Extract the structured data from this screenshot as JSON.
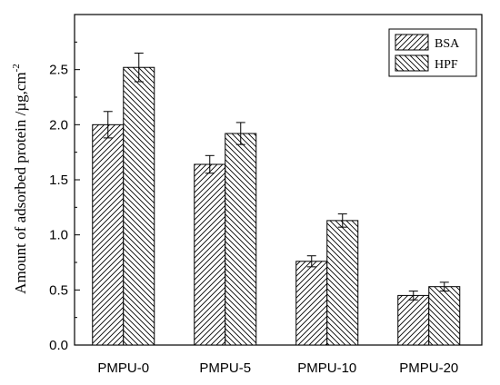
{
  "chart_data": {
    "type": "bar",
    "categories": [
      "PMPU-0",
      "PMPU-5",
      "PMPU-10",
      "PMPU-20"
    ],
    "series": [
      {
        "name": "BSA",
        "values": [
          2.0,
          1.64,
          0.76,
          0.45
        ],
        "errors": [
          0.12,
          0.08,
          0.05,
          0.04
        ],
        "pattern": "forward-hatch"
      },
      {
        "name": "HPF",
        "values": [
          2.52,
          1.92,
          1.13,
          0.53
        ],
        "errors": [
          0.13,
          0.1,
          0.06,
          0.04
        ],
        "pattern": "backward-hatch"
      }
    ],
    "ylabel": "Amount of adsorbed protein /µg,cm",
    "ylabel_superscript": "-2",
    "xlabel": "",
    "title": "",
    "ylim": [
      0,
      3.0
    ],
    "yticks": [
      "0.0",
      "0.5",
      "1.0",
      "1.5",
      "2.0",
      "2.5"
    ],
    "legend_position": "top-right",
    "grid": false
  }
}
